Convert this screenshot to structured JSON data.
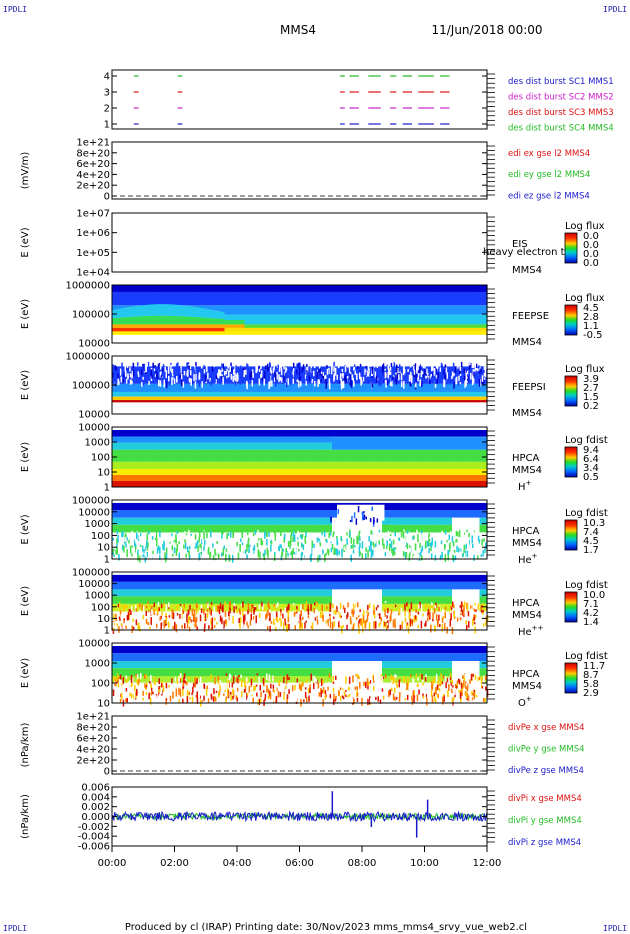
{
  "header": {
    "corner_tl": "IPDLI",
    "corner_tr": "IPDLI",
    "corner_bl": "IPDLI",
    "corner_br": "IPDLI",
    "title": "MMS4",
    "date": "11/Jun/2018 00:00"
  },
  "footer": {
    "text": "Produced by cl (IRAP)   Printing date: 30/Nov/2023   mms_mms4_srvy_vue_web2.cl"
  },
  "x_axis": {
    "ticks": [
      "00:00",
      "02:00",
      "04:00",
      "06:00",
      "08:00",
      "10:00",
      "12:00"
    ]
  },
  "colors": {
    "blue": "#1a1acc",
    "green": "#22bb22",
    "red": "#dd1111",
    "magenta": "#cc22cc"
  },
  "panels": {
    "p1": {
      "yticks": [
        "4",
        "3",
        "2",
        "1"
      ],
      "legend": [
        {
          "text": "des dist burst SC1 MMS1",
          "color": "#1a1acc"
        },
        {
          "text": "des dist burst SC2 MMS2",
          "color": "#cc22cc"
        },
        {
          "text": "des dist burst SC3 MMS3",
          "color": "#dd1111"
        },
        {
          "text": "des dist burst SC4 MMS4",
          "color": "#22bb22"
        }
      ]
    },
    "p2": {
      "ylabel": "(mV/m)",
      "yticks": [
        "1e+21",
        "8e+20",
        "6e+20",
        "4e+20",
        "2e+20",
        "0"
      ],
      "legend": [
        {
          "text": "edi ex gse l2 MMS4",
          "color": "#dd1111"
        },
        {
          "text": "edi ey gse l2 MMS4",
          "color": "#22bb22"
        },
        {
          "text": "edi ez gse l2 MMS4",
          "color": "#1a1acc"
        }
      ]
    },
    "p3": {
      "ylabel": "E (eV)",
      "yticks": [
        "1e+07",
        "1e+06",
        "1e+05",
        "1e+04"
      ],
      "inst": "EIS",
      "overlay": "heavy electron to",
      "sc": "MMS4",
      "cb_title": "Log flux",
      "cb_ticks": [
        "0.0",
        "0.0",
        "0.0",
        "0.0"
      ]
    },
    "p4": {
      "ylabel": "E (eV)",
      "yticks": [
        "1000000",
        "100000",
        "10000"
      ],
      "inst": "FEEPSE",
      "sc": "MMS4",
      "cb_title": "Log flux",
      "cb_ticks": [
        "4.5",
        "2.8",
        "1.1",
        "-0.5"
      ]
    },
    "p5": {
      "ylabel": "E (eV)",
      "yticks": [
        "1000000",
        "100000",
        "10000"
      ],
      "inst": "FEEPSI",
      "sc": "MMS4",
      "cb_title": "Log flux",
      "cb_ticks": [
        "3.9",
        "2.7",
        "1.5",
        "0.2"
      ]
    },
    "p6": {
      "ylabel": "E (eV)",
      "yticks": [
        "10000",
        "1000",
        "100",
        "10",
        "1"
      ],
      "inst": "HPCA",
      "sc": "MMS4",
      "species": "H",
      "species_sup": "+",
      "cb_title": "Log fdist",
      "cb_ticks": [
        "9.4",
        "6.4",
        "3.4",
        "0.5"
      ]
    },
    "p7": {
      "ylabel": "E (eV)",
      "yticks": [
        "100000",
        "10000",
        "1000",
        "100",
        "10",
        "1"
      ],
      "inst": "HPCA",
      "sc": "MMS4",
      "species": "He",
      "species_sup": "+",
      "cb_title": "Log fdist",
      "cb_ticks": [
        "10.3",
        "7.4",
        "4.5",
        "1.7"
      ]
    },
    "p8": {
      "ylabel": "E (eV)",
      "yticks": [
        "100000",
        "10000",
        "1000",
        "100",
        "10",
        "1"
      ],
      "inst": "HPCA",
      "sc": "MMS4",
      "species": "He",
      "species_sup": "++",
      "cb_title": "Log fdist",
      "cb_ticks": [
        "10.0",
        "7.1",
        "4.2",
        "1.4"
      ]
    },
    "p9": {
      "ylabel": "E (eV)",
      "yticks": [
        "10000",
        "1000",
        "100",
        "10"
      ],
      "inst": "HPCA",
      "sc": "MMS4",
      "species": "O",
      "species_sup": "+",
      "cb_title": "Log fdist",
      "cb_ticks": [
        "11.7",
        "8.7",
        "5.8",
        "2.9"
      ]
    },
    "p10": {
      "ylabel": "(nPa/km)",
      "yticks": [
        "1e+21",
        "8e+20",
        "6e+20",
        "4e+20",
        "2e+20",
        "0"
      ],
      "legend": [
        {
          "text": "divPe x gse MMS4",
          "color": "#dd1111"
        },
        {
          "text": "divPe y gse MMS4",
          "color": "#22bb22"
        },
        {
          "text": "divPe z gse MMS4",
          "color": "#1a1acc"
        }
      ]
    },
    "p11": {
      "ylabel": "(nPa/km)",
      "yticks": [
        "0.006",
        "0.004",
        "0.002",
        "0.000",
        "-0.002",
        "-0.004",
        "-0.006"
      ],
      "legend": [
        {
          "text": "divPi x gse MMS4",
          "color": "#dd1111"
        },
        {
          "text": "divPi y gse MMS4",
          "color": "#22bb22"
        },
        {
          "text": "divPi z gse MMS4",
          "color": "#1a1acc"
        }
      ]
    }
  },
  "chart_data": [
    {
      "type": "scatter",
      "panel": "burst availability",
      "x_range_hours": [
        0,
        12
      ],
      "ylim": [
        0.5,
        4.5
      ],
      "segments_hours": [
        [
          0.7,
          0.85
        ],
        [
          2.1,
          2.25
        ],
        [
          7.3,
          7.45
        ],
        [
          7.6,
          7.9
        ],
        [
          8.2,
          8.6
        ],
        [
          8.9,
          9.1
        ],
        [
          9.3,
          9.6
        ],
        [
          9.8,
          10.3
        ],
        [
          10.5,
          10.8
        ]
      ]
    },
    {
      "type": "line",
      "panel": "edi E gse l2",
      "x_range_hours": [
        0,
        12
      ],
      "ylim": [
        0,
        1e+21
      ],
      "series": [
        {
          "name": "edi ex gse l2 MMS4",
          "values": []
        },
        {
          "name": "edi ey gse l2 MMS4",
          "values": []
        },
        {
          "name": "edi ez gse l2 MMS4",
          "values": []
        }
      ]
    },
    {
      "type": "heatmap",
      "panel": "FEEPS electron",
      "x_range_hours": [
        0,
        12
      ],
      "ylim_eV": [
        10000,
        1000000
      ],
      "y_scale": "log",
      "colorbar_range": [
        -0.5,
        4.5
      ]
    },
    {
      "type": "heatmap",
      "panel": "FEEPS ion",
      "x_range_hours": [
        0,
        12
      ],
      "ylim_eV": [
        10000,
        1000000
      ],
      "y_scale": "log",
      "colorbar_range": [
        0.2,
        3.9
      ]
    },
    {
      "type": "heatmap",
      "panel": "HPCA H+",
      "x_range_hours": [
        0,
        12
      ],
      "ylim_eV": [
        1,
        10000
      ],
      "y_scale": "log",
      "colorbar_range": [
        0.5,
        9.4
      ]
    },
    {
      "type": "heatmap",
      "panel": "HPCA He+",
      "x_range_hours": [
        0,
        12
      ],
      "ylim_eV": [
        1,
        100000
      ],
      "y_scale": "log",
      "colorbar_range": [
        1.7,
        10.3
      ]
    },
    {
      "type": "heatmap",
      "panel": "HPCA He++",
      "x_range_hours": [
        0,
        12
      ],
      "ylim_eV": [
        1,
        100000
      ],
      "y_scale": "log",
      "colorbar_range": [
        1.4,
        10.0
      ]
    },
    {
      "type": "heatmap",
      "panel": "HPCA O+",
      "x_range_hours": [
        0,
        12
      ],
      "ylim_eV": [
        1,
        100000
      ],
      "y_scale": "log",
      "colorbar_range": [
        2.9,
        11.7
      ]
    },
    {
      "type": "line",
      "panel": "divPi gse",
      "x_range_hours": [
        0,
        12
      ],
      "ylim": [
        -0.007,
        0.007
      ],
      "series": [
        {
          "name": "divPi x gse MMS4",
          "spikes": [
            {
              "x": 7.05,
              "y": 0.006
            },
            {
              "x": 10.1,
              "y": 0.004
            }
          ]
        },
        {
          "name": "divPi y gse MMS4"
        },
        {
          "name": "divPi z gse MMS4",
          "spikes": [
            {
              "x": 9.75,
              "y": -0.005
            },
            {
              "x": 8.3,
              "y": -0.0025
            }
          ]
        }
      ]
    }
  ]
}
